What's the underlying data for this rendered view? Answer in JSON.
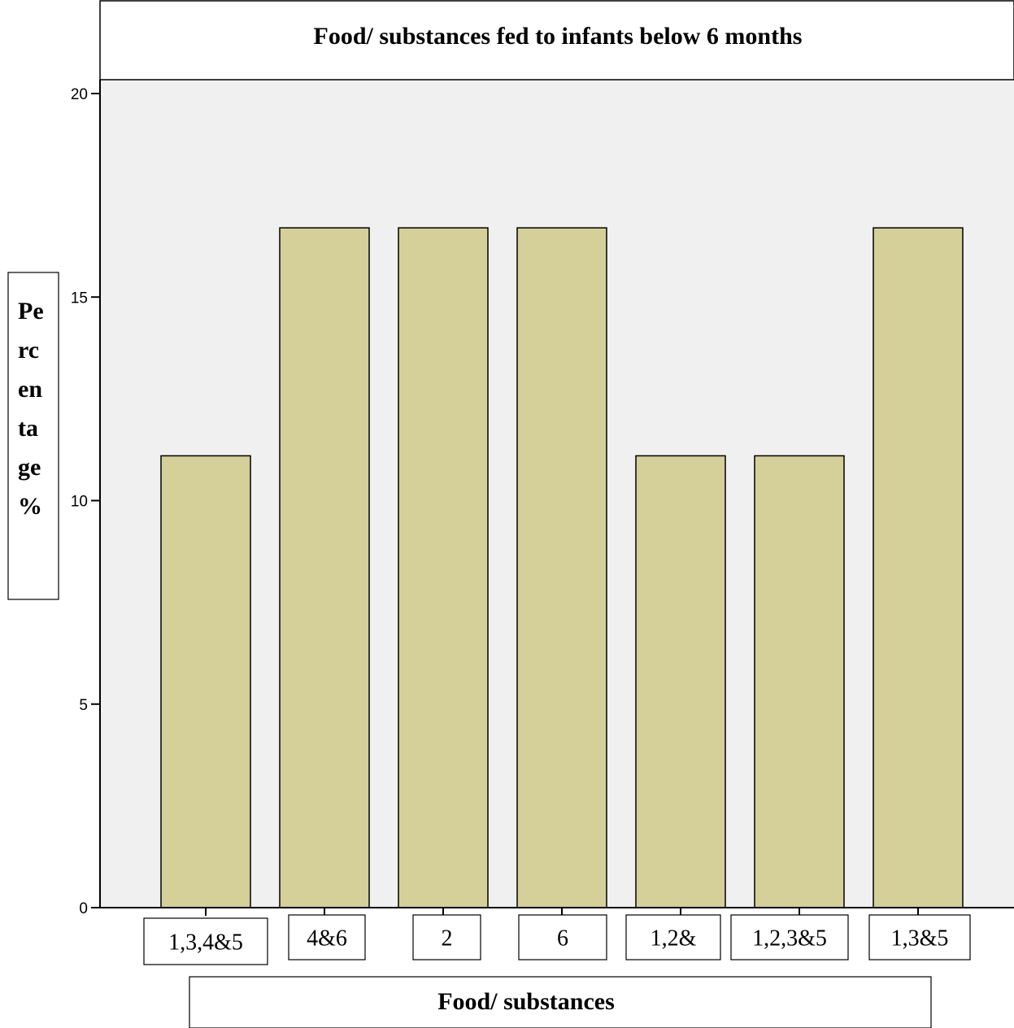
{
  "chart_data": {
    "type": "bar",
    "title": "Food/ substances fed to infants below 6 months",
    "ylabel": "Percentage %",
    "ylabel_lines": [
      "Pe",
      "rc",
      "en",
      "ta",
      "ge",
      "%"
    ],
    "xlabel": "Food/ substances",
    "categories": [
      "1,3,4&5",
      "4&6",
      "2",
      "6",
      "1,2&",
      "1,2,3&5",
      "1,3&5"
    ],
    "values": [
      11.1,
      16.7,
      16.7,
      16.7,
      11.1,
      11.1,
      16.7
    ],
    "ylim": [
      0,
      20
    ],
    "yticks": [
      0,
      5,
      10,
      15,
      20
    ],
    "ytick_labels": [
      "0",
      "5",
      "10",
      "15",
      "20"
    ],
    "grid": false,
    "colors": {
      "bar": "#d5cf99",
      "plot_background": "#f0f0f0",
      "axis": "#000000"
    }
  }
}
